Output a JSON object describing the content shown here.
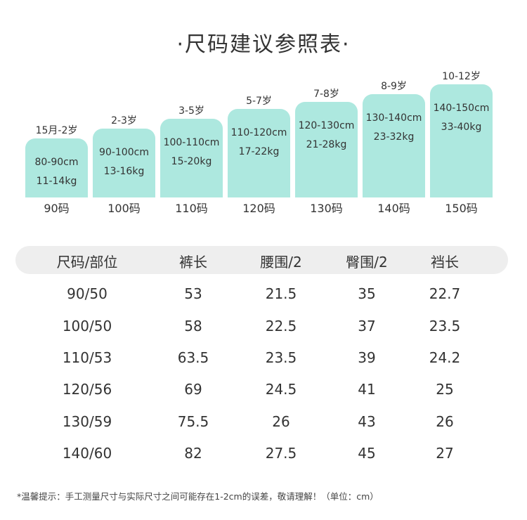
{
  "title": "·尺码建议参照表·",
  "bars": [
    {
      "age": "15月-2岁",
      "height_cm": "80-90cm",
      "weight": "11-14kg",
      "size": "90码"
    },
    {
      "age": "2-3岁",
      "height_cm": "90-100cm",
      "weight": "13-16kg",
      "size": "100码"
    },
    {
      "age": "3-5岁",
      "height_cm": "100-110cm",
      "weight": "15-20kg",
      "size": "110码"
    },
    {
      "age": "5-7岁",
      "height_cm": "110-120cm",
      "weight": "17-22kg",
      "size": "120码"
    },
    {
      "age": "7-8岁",
      "height_cm": "120-130cm",
      "weight": "21-28kg",
      "size": "130码"
    },
    {
      "age": "8-9岁",
      "height_cm": "130-140cm",
      "weight": "23-32kg",
      "size": "140码"
    },
    {
      "age": "10-12岁",
      "height_cm": "140-150cm",
      "weight": "33-40kg",
      "size": "150码"
    }
  ],
  "table": {
    "headers": [
      "尺码/部位",
      "裤长",
      "腰围/2",
      "臀围/2",
      "裆长"
    ],
    "rows": [
      [
        "90/50",
        "53",
        "21.5",
        "35",
        "22.7"
      ],
      [
        "100/50",
        "58",
        "22.5",
        "37",
        "23.5"
      ],
      [
        "110/53",
        "63.5",
        "23.5",
        "39",
        "24.2"
      ],
      [
        "120/56",
        "69",
        "24.5",
        "41",
        "25"
      ],
      [
        "130/59",
        "75.5",
        "26",
        "43",
        "26"
      ],
      [
        "140/60",
        "82",
        "27.5",
        "45",
        "27"
      ]
    ]
  },
  "note": "*温馨提示：手工测量尺寸与实际尺寸之间可能存在1-2cm的误差，敬请理解！（单位：cm）",
  "colors": {
    "bar": "#ade8df",
    "header_bg": "#eeeeee",
    "text": "#333333"
  }
}
